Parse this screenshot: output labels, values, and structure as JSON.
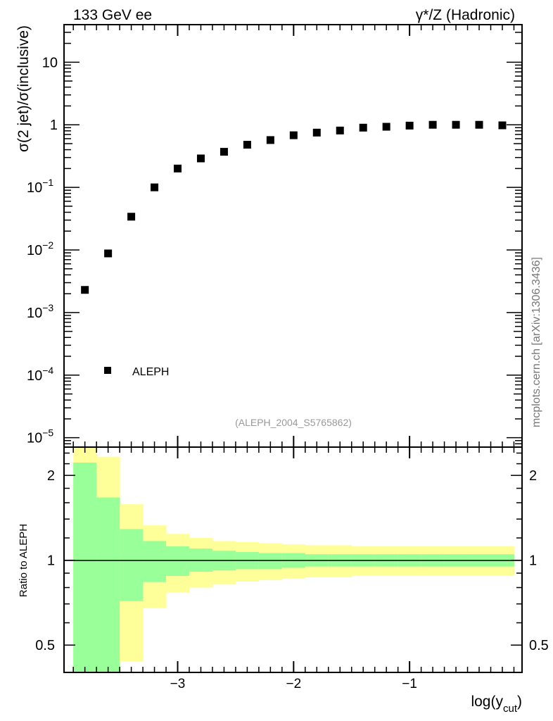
{
  "chart_data": [
    {
      "type": "scatter",
      "title_left": "133 GeV ee",
      "title_right": "γ*/Z (Hadronic)",
      "ylabel": "σ(2 jet)/σ(inclusive)",
      "xlabel": "",
      "yscale": "log",
      "xlim": [
        -3.98,
        -0.03
      ],
      "ylim_log10": [
        -5.15,
        1.6
      ],
      "y_ticks": [
        {
          "exp": 1,
          "label": "10"
        },
        {
          "exp": 0,
          "label": "1"
        },
        {
          "exp": -1,
          "label": "10",
          "sup": "−1"
        },
        {
          "exp": -2,
          "label": "10",
          "sup": "−2"
        },
        {
          "exp": -3,
          "label": "10",
          "sup": "−3"
        },
        {
          "exp": -4,
          "label": "10",
          "sup": "−4"
        },
        {
          "exp": -5,
          "label": "10",
          "sup": "−5"
        }
      ],
      "series": [
        {
          "name": "ALEPH",
          "color": "#000000",
          "x": [
            -3.8,
            -3.6,
            -3.4,
            -3.2,
            -3.0,
            -2.8,
            -2.6,
            -2.4,
            -2.2,
            -2.0,
            -1.8,
            -1.6,
            -1.4,
            -1.2,
            -1.0,
            -0.8,
            -0.6,
            -0.4,
            -0.2
          ],
          "y": [
            0.0023,
            0.0088,
            0.034,
            0.1,
            0.2,
            0.29,
            0.37,
            0.48,
            0.57,
            0.68,
            0.75,
            0.81,
            0.9,
            0.93,
            0.97,
            1.0,
            1.0,
            1.0,
            0.98
          ]
        }
      ],
      "legend": {
        "placement": "bottom-left",
        "entries": [
          "ALEPH"
        ]
      },
      "annotation": "(ALEPH_2004_S5765862)",
      "side_label": "mcplots.cern.ch [arXiv:1306.3436]"
    },
    {
      "type": "area",
      "ylabel": "Ratio to ALEPH",
      "xlabel": "log(y",
      "xlabel_sub": "cut",
      "xlabel_close": ")",
      "yscale": "log",
      "ylim": [
        0.4,
        2.52
      ],
      "y_ticks": [
        {
          "v": 2,
          "label": "2"
        },
        {
          "v": 1,
          "label": "1"
        },
        {
          "v": 0.5,
          "label": "0.5"
        }
      ],
      "x_ticks": [
        {
          "v": -3,
          "label": "−3"
        },
        {
          "v": -2,
          "label": "−2"
        },
        {
          "v": -1,
          "label": "−1"
        }
      ],
      "colors": {
        "outer": "#ffff99",
        "inner": "#99ff99"
      },
      "bin_edges": [
        -3.9,
        -3.7,
        -3.5,
        -3.3,
        -3.1,
        -2.9,
        -2.7,
        -2.5,
        -2.3,
        -2.1,
        -1.9,
        -1.7,
        -1.5,
        -1.3,
        -1.1,
        -0.9,
        -0.7,
        -0.5,
        -0.3,
        -0.1
      ],
      "outer_up": [
        2.8,
        2.33,
        1.58,
        1.33,
        1.24,
        1.2,
        1.17,
        1.16,
        1.15,
        1.14,
        1.13,
        1.13,
        1.12,
        1.12,
        1.12,
        1.12,
        1.12,
        1.12,
        1.12
      ],
      "inner_up": [
        2.22,
        1.67,
        1.29,
        1.17,
        1.12,
        1.1,
        1.08,
        1.07,
        1.06,
        1.06,
        1.05,
        1.05,
        1.05,
        1.05,
        1.05,
        1.05,
        1.05,
        1.05,
        1.05
      ],
      "inner_down": [
        0.2,
        0.2,
        0.716,
        0.837,
        0.88,
        0.91,
        0.92,
        0.93,
        0.93,
        0.94,
        0.95,
        0.95,
        0.95,
        0.95,
        0.95,
        0.95,
        0.95,
        0.95,
        0.95
      ],
      "outer_down": [
        0.2,
        0.2,
        0.437,
        0.676,
        0.77,
        0.8,
        0.82,
        0.84,
        0.85,
        0.86,
        0.87,
        0.87,
        0.88,
        0.88,
        0.88,
        0.88,
        0.88,
        0.88,
        0.88
      ],
      "reference_line": 1
    }
  ]
}
